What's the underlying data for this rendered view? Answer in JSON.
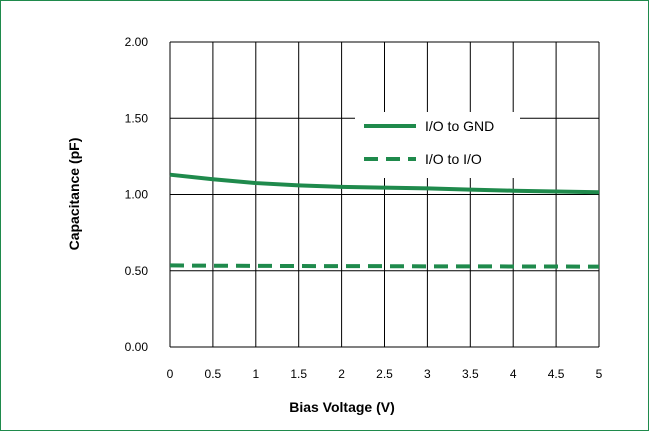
{
  "chart_data": {
    "type": "line",
    "title": "",
    "xlabel": "Bias Voltage (V)",
    "ylabel": "Capacitance (pF)",
    "xlim": [
      0,
      5
    ],
    "ylim": [
      0,
      2
    ],
    "x_ticks": [
      "0",
      "0.5",
      "1",
      "1.5",
      "2",
      "2.5",
      "3",
      "3.5",
      "4",
      "4.5",
      "5"
    ],
    "y_ticks": [
      "0.00",
      "0.50",
      "1.00",
      "1.50",
      "2.00"
    ],
    "grid": true,
    "legend_position": "upper-right",
    "series": [
      {
        "name": "I/O to GND",
        "style": "solid",
        "color": "#1f8a4c",
        "x": [
          0,
          0.5,
          1,
          1.5,
          2,
          2.5,
          3,
          3.5,
          4,
          4.5,
          5
        ],
        "y": [
          1.13,
          1.1,
          1.075,
          1.06,
          1.05,
          1.045,
          1.04,
          1.032,
          1.025,
          1.02,
          1.015
        ]
      },
      {
        "name": "I/O to I/O",
        "style": "dashed",
        "color": "#1f8a4c",
        "x": [
          0,
          0.5,
          1,
          1.5,
          2,
          2.5,
          3,
          3.5,
          4,
          4.5,
          5
        ],
        "y": [
          0.535,
          0.533,
          0.532,
          0.531,
          0.53,
          0.53,
          0.529,
          0.529,
          0.528,
          0.528,
          0.527
        ]
      }
    ]
  }
}
